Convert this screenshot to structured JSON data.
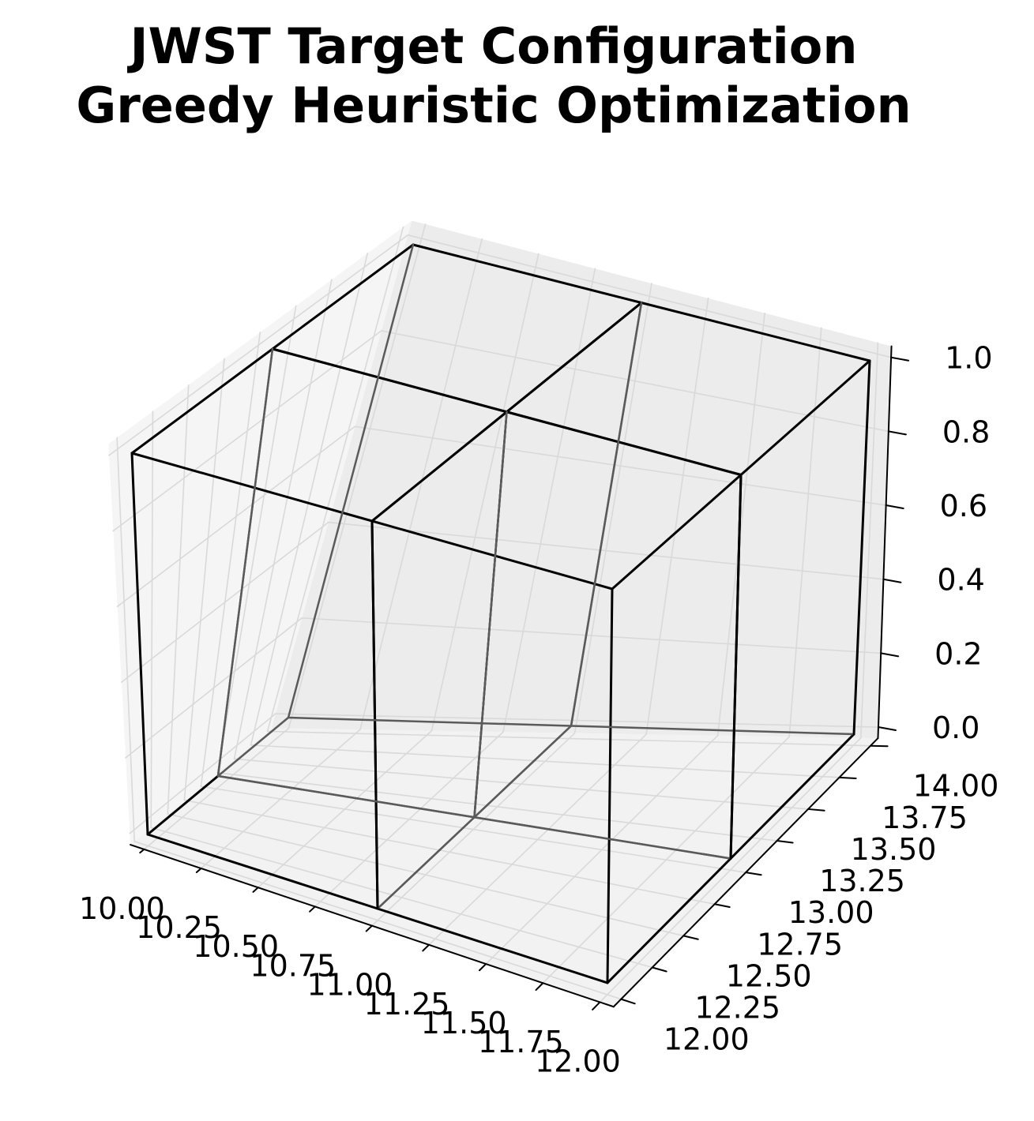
{
  "chart_data": {
    "type": "3d-wireframe",
    "title_lines": [
      "JWST Target Configuration",
      "Greedy Heuristic Optimization"
    ],
    "xlabel": "",
    "ylabel": "",
    "zlabel": "",
    "x_ticks": [
      "10.00",
      "10.25",
      "10.50",
      "10.75",
      "11.00",
      "11.25",
      "11.50",
      "11.75",
      "12.00"
    ],
    "y_ticks": [
      "12.00",
      "12.25",
      "12.50",
      "12.75",
      "13.00",
      "13.25",
      "13.50",
      "13.75",
      "14.00"
    ],
    "z_ticks": [
      "0.0",
      "0.2",
      "0.4",
      "0.6",
      "0.8",
      "1.0"
    ],
    "xlim": [
      10,
      12
    ],
    "ylim": [
      12,
      14
    ],
    "zlim": [
      0,
      1
    ],
    "grid": true,
    "boxes": [
      {
        "x": [
          10,
          11
        ],
        "y": [
          12,
          13
        ],
        "z": [
          0,
          1
        ]
      },
      {
        "x": [
          11,
          12
        ],
        "y": [
          12,
          13
        ],
        "z": [
          0,
          1
        ]
      },
      {
        "x": [
          10,
          11
        ],
        "y": [
          13,
          14
        ],
        "z": [
          0,
          1
        ]
      },
      {
        "x": [
          11,
          12
        ],
        "y": [
          13,
          14
        ],
        "z": [
          0,
          1
        ]
      }
    ],
    "colors": {
      "edge": "#000000",
      "pane": "#f2f2f2",
      "grid": "#d9d9d9",
      "axis": "#000000"
    }
  }
}
